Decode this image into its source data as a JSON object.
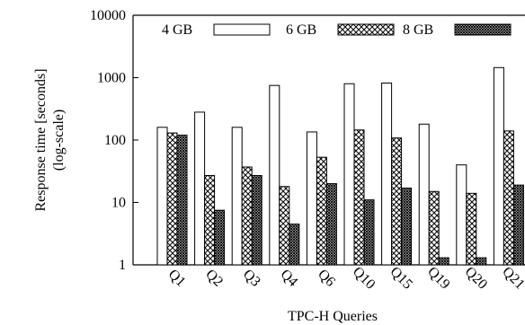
{
  "chart_data": {
    "type": "bar",
    "categories": [
      "Q1",
      "Q2",
      "Q3",
      "Q4",
      "Q6",
      "Q10",
      "Q15",
      "Q19",
      "Q20",
      "Q21"
    ],
    "series": [
      {
        "name": "4 GB",
        "values": [
          160,
          280,
          160,
          750,
          135,
          800,
          820,
          180,
          40,
          1450
        ]
      },
      {
        "name": "6 GB",
        "values": [
          130,
          27,
          37,
          18,
          53,
          145,
          108,
          15,
          14,
          140
        ]
      },
      {
        "name": "8 GB",
        "values": [
          120,
          7.5,
          27,
          4.5,
          20,
          11,
          17,
          1.3,
          1.3,
          19
        ]
      }
    ],
    "xlabel": "TPC-H Queries",
    "ylabel": [
      "Response time [seconds]",
      "(log-scale)"
    ],
    "y_scale": "log",
    "ylim": [
      1,
      10000
    ],
    "y_ticks": [
      "1",
      "10",
      "100",
      "1000",
      "10000"
    ],
    "legend_position": "top, inside plot",
    "grid": false,
    "colors": {
      "axis": "#000000",
      "bar_stroke": "#000000",
      "plain_fill": "#ffffff",
      "pattern": "#000000"
    }
  }
}
